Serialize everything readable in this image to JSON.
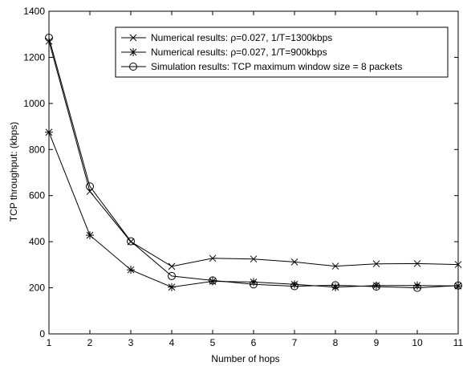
{
  "chart_data": {
    "type": "line",
    "title": "",
    "xlabel": "Number of hops",
    "ylabel": "TCP throughput: (kbps)",
    "xlim": [
      1,
      11
    ],
    "ylim": [
      0,
      1400
    ],
    "x_ticks": [
      1,
      2,
      3,
      4,
      5,
      6,
      7,
      8,
      9,
      10,
      11
    ],
    "y_ticks": [
      0,
      200,
      400,
      600,
      800,
      1000,
      1200,
      1400
    ],
    "grid": false,
    "legend_position": "top-right",
    "x": [
      1,
      2,
      3,
      4,
      5,
      6,
      7,
      8,
      9,
      10,
      11
    ],
    "series": [
      {
        "name": "Numerical results: ρ=0.027, 1/T=1300kbps",
        "marker": "x",
        "values": [
          1270,
          618,
          400,
          293,
          328,
          325,
          312,
          294,
          304,
          305,
          301
        ]
      },
      {
        "name": "Numerical results: ρ=0.027, 1/T=900kbps",
        "marker": "asterisk",
        "values": [
          875,
          428,
          278,
          203,
          228,
          225,
          215,
          203,
          210,
          210,
          208
        ]
      },
      {
        "name": "Simulation results: TCP maximum window size  = 8 packets",
        "marker": "circle",
        "values": [
          1285,
          640,
          402,
          251,
          232,
          215,
          207,
          211,
          205,
          200,
          210
        ]
      }
    ]
  }
}
